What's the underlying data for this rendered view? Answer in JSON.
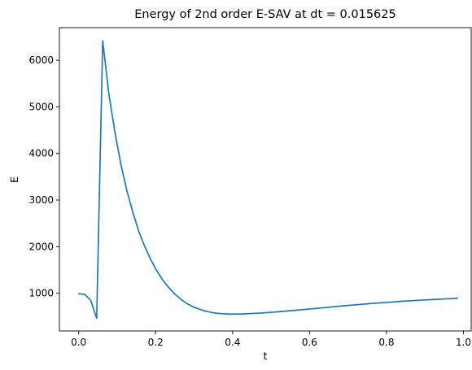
{
  "chart_data": {
    "type": "line",
    "title": "Energy of 2nd order E-SAV at dt = 0.015625",
    "xlabel": "t",
    "ylabel": "E",
    "xlim": [
      -0.05,
      1.02
    ],
    "ylim": [
      190,
      6700
    ],
    "x_ticks": [
      0.0,
      0.2,
      0.4,
      0.6,
      0.8,
      1.0
    ],
    "x_tick_labels": [
      "0.0",
      "0.2",
      "0.4",
      "0.6",
      "0.8",
      "1.0"
    ],
    "y_ticks": [
      1000,
      2000,
      3000,
      4000,
      5000,
      6000
    ],
    "y_tick_labels": [
      "1000",
      "2000",
      "3000",
      "4000",
      "5000",
      "6000"
    ],
    "grid": false,
    "series": [
      {
        "color": "#1f77b4",
        "x": [
          0.0,
          0.015625,
          0.03125,
          0.046875,
          0.0625,
          0.078125,
          0.09375,
          0.109375,
          0.125,
          0.140625,
          0.15625,
          0.171875,
          0.1875,
          0.203125,
          0.21875,
          0.234375,
          0.25,
          0.265625,
          0.28125,
          0.296875,
          0.3125,
          0.328125,
          0.34375,
          0.359375,
          0.375,
          0.390625,
          0.40625,
          0.421875,
          0.4375,
          0.453125,
          0.46875,
          0.484375,
          0.5,
          0.515625,
          0.53125,
          0.546875,
          0.5625,
          0.578125,
          0.59375,
          0.609375,
          0.625,
          0.640625,
          0.65625,
          0.671875,
          0.6875,
          0.703125,
          0.71875,
          0.734375,
          0.75,
          0.765625,
          0.78125,
          0.796875,
          0.8125,
          0.828125,
          0.84375,
          0.859375,
          0.875,
          0.890625,
          0.90625,
          0.921875,
          0.9375,
          0.953125,
          0.96875,
          0.984375
        ],
        "y": [
          990,
          975,
          850,
          460,
          6420,
          5300,
          4480,
          3780,
          3210,
          2740,
          2330,
          2000,
          1720,
          1480,
          1280,
          1120,
          980,
          870,
          780,
          710,
          660,
          620,
          590,
          570,
          560,
          555,
          553,
          555,
          560,
          566,
          573,
          581,
          590,
          600,
          611,
          622,
          633,
          645,
          657,
          669,
          681,
          693,
          705,
          717,
          729,
          740,
          751,
          762,
          772,
          782,
          792,
          802,
          811,
          820,
          829,
          837,
          845,
          852,
          859,
          866,
          872,
          878,
          884,
          890
        ]
      }
    ]
  }
}
